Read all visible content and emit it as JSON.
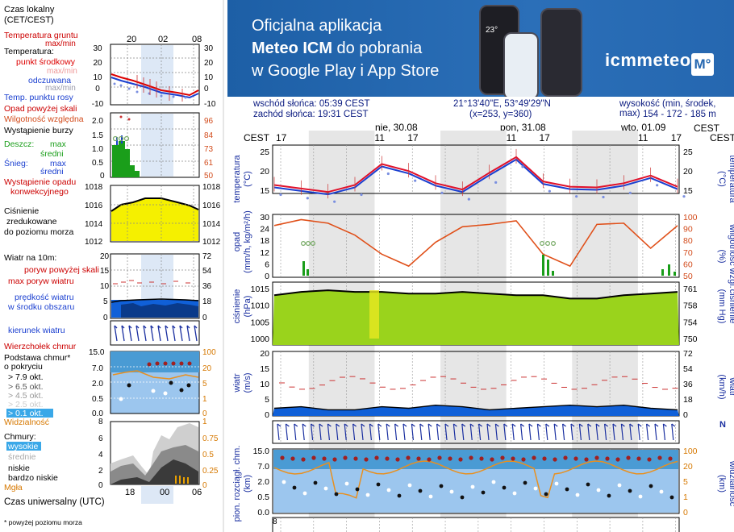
{
  "banner": {
    "line1": "Oficjalna aplikacja",
    "line2_bold": "Meteo ICM",
    "line2_rest": " do pobrania",
    "line3": "w Google Play i App Store",
    "logo": "icmmeteo",
    "badge": "M°",
    "phone_temp": "23°"
  },
  "info": {
    "sunrise": "wschód słońca: 05:39 CEST",
    "sunset": "zachód słońca: 19:31 CEST",
    "coords": "21°13'40\"E, 53°49'29\"N",
    "grid": "(x=253,  y=360)",
    "height_label": "wysokość (min, środek, max)",
    "height_values": "154 - 172 - 185 m"
  },
  "legend": {
    "time_local": "Czas lokalny",
    "time_local_sub": "(CET/CEST)",
    "time_ticks": [
      "20",
      "02",
      "08"
    ],
    "soil_temp": "Temperatura gruntu",
    "maxmin": "max/min",
    "temperature": "Temperatura:",
    "midpoint": "punkt środkowy",
    "maxmin2": "max/min",
    "felt": "odczuwana",
    "maxmin3": "max/min",
    "dewpoint": "Temp. punktu rosy",
    "temp_ticks": [
      "30",
      "20",
      "10",
      "0",
      "-10"
    ],
    "precip_above": "Opad powyżej skali",
    "humidity": "Wilgotność względna",
    "storm": "Wystąpienie burzy",
    "rain": "Deszcz:",
    "rain_max": "max",
    "rain_mean": "średni",
    "snow": "Śnieg:",
    "snow_max": "max",
    "snow_mean": "średni",
    "precip_conv": "Wystąpienie opadu",
    "precip_conv2": "konwekcyjnego",
    "precip_ticks": [
      "2.0",
      "1.5",
      "1.0",
      "0.5",
      "0"
    ],
    "hum_ticks": [
      "96",
      "84",
      "73",
      "61",
      "50"
    ],
    "pressure1": "Ciśnienie",
    "pressure2": "zredukowane",
    "pressure3": "do poziomu morza",
    "press_ticks": [
      "1018",
      "1016",
      "1014",
      "1012"
    ],
    "wind_at": "Wiatr na 10m:",
    "gust_above": "poryw powyżej skali",
    "gust_max": "max poryw wiatru",
    "wind_speed": "prędkość wiatru",
    "wind_speed2": "w środku obszaru",
    "wind_ticks": [
      "20",
      "15",
      "10",
      "5",
      "0"
    ],
    "wind_kmh_ticks": [
      "72",
      "54",
      "36",
      "18",
      "0"
    ],
    "wind_dir": "kierunek wiatru",
    "cloud_top": "Wierzchołek chmur",
    "cloud_base": "Podstawa chmur*",
    "cloud_base2": "o pokryciu",
    "okt79": "> 7.9 okt.",
    "okt65": "> 6.5 okt.",
    "okt45": "> 4.5 okt.",
    "okt25": "> 2.5 okt.",
    "okt01": "> 0.1 okt.",
    "cloud_ticks": [
      "15.0",
      "7.0",
      "2.0",
      "0.5",
      "0.0"
    ],
    "vis_ticks": [
      "100",
      "20",
      "5",
      "1",
      "0"
    ],
    "visibility": "Widzialność",
    "clouds": "Chmury:",
    "high": "wysokie",
    "mid": "średnie",
    "low": "niskie",
    "verylow": "bardzo niskie",
    "fog": "Mgła",
    "cov_ticks": [
      "8",
      "6",
      "4",
      "2",
      "0"
    ],
    "cov_right_ticks": [
      "1",
      "0.75",
      "0.5",
      "0.25",
      "0"
    ],
    "utc": "Czas uniwersalny (UTC)",
    "utc_ticks": [
      "18",
      "00",
      "06"
    ],
    "footnote": "* powyżej poziomu morza"
  },
  "main": {
    "cest_left": "CEST",
    "cest_right": "CEST",
    "days": [
      "nie, 30.08",
      "pon, 31.08",
      "wto, 01.09"
    ],
    "hours": [
      "17",
      "23",
      "05",
      "11",
      "17",
      "23",
      "05",
      "11",
      "17",
      "23",
      "05",
      "11",
      "17"
    ],
    "temp_label": "temperatura",
    "temp_unit": "(°C)",
    "temp_ticks": [
      "25",
      "20",
      "15"
    ],
    "precip_label": "opad",
    "precip_unit": "(mm/h, kg/m²/h)",
    "precip_ticks": [
      "30",
      "24",
      "18",
      "12",
      "6",
      "0"
    ],
    "hum_label": "wilgotność wzgl.",
    "hum_unit": "(%)",
    "hum_ticks": [
      "100",
      "90",
      "80",
      "70",
      "60",
      "50"
    ],
    "press_label": "ciśnienie",
    "press_unit": "(hPa)",
    "press_ticks": [
      "1015",
      "1010",
      "1005",
      "1000"
    ],
    "press_right_label": "ciśnienie",
    "press_right_unit": "(mm Hg)",
    "mmhg_ticks": [
      "761",
      "758",
      "754",
      "750"
    ],
    "wind_label": "wiatr",
    "wind_unit": "(m/s)",
    "wind_ticks": [
      "20",
      "15",
      "10",
      "5",
      "0"
    ],
    "wind_right_unit": "(km/h)",
    "wind_right_label": "wiatr",
    "wind_kmh_ticks": [
      "72",
      "54",
      "36",
      "18",
      "0"
    ],
    "cloud_label": "pion. rozciągł. chm.",
    "cloud_unit": "(km)",
    "cloud_ticks": [
      "15.0",
      "7.0",
      "2.0",
      "0.5",
      "0.0"
    ],
    "vis_label": "widzialność",
    "vis_unit": "(km)",
    "vis_ticks": [
      "100",
      "20",
      "5",
      "1",
      "0"
    ],
    "compass": "N",
    "bottom_tick": "8"
  },
  "chart_data": {
    "type": "line",
    "x_hours_cest": [
      "17",
      "23",
      "05",
      "11",
      "17",
      "23",
      "05",
      "11",
      "17",
      "23",
      "05",
      "11",
      "17"
    ],
    "temperature_c": [
      15.5,
      14.5,
      13.5,
      15.5,
      21.5,
      19.5,
      16.0,
      14.2,
      19.0,
      23.5,
      16.5,
      15.0,
      14.8,
      16.0,
      18.2,
      15.0
    ],
    "humidity_pct": [
      92,
      97,
      94,
      84,
      68,
      58,
      78,
      91,
      93,
      96,
      68,
      58,
      93,
      94,
      73,
      92
    ],
    "pressure_hpa": [
      1013,
      1014,
      1014.5,
      1014,
      1014,
      1013.5,
      1013.5,
      1014,
      1013.5,
      1013,
      1013,
      1012,
      1012,
      1013,
      1013.5,
      1014
    ],
    "wind_ms": [
      2.5,
      3,
      2,
      2,
      3,
      2.5,
      3.5,
      3,
      2,
      2.5,
      3,
      3.5,
      3,
      3.5,
      2.5,
      2
    ]
  }
}
